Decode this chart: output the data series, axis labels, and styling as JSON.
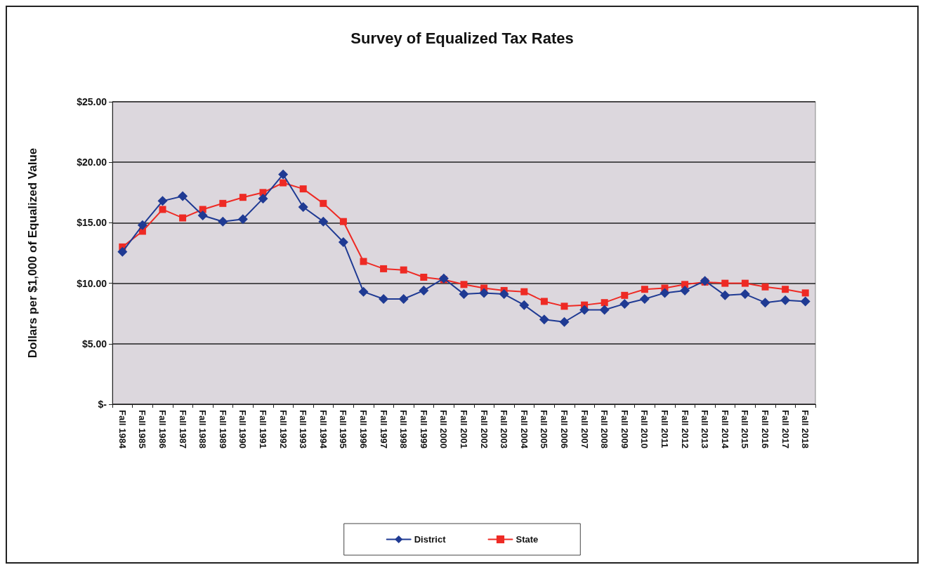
{
  "chart_data": {
    "type": "line",
    "title": "Survey of Equalized Tax Rates",
    "ylabel": "Dollars per $1,000 of Equalized Value",
    "categories": [
      "Fall 1984",
      "Fall 1985",
      "Fall 1986",
      "Fall 1987",
      "Fall 1988",
      "Fall 1989",
      "Fall 1990",
      "Fall 1991",
      "Fall 1992",
      "Fall 1993",
      "Fall 1994",
      "Fall 1995",
      "Fall 1996",
      "Fall 1997",
      "Fall 1998",
      "Fall 1999",
      "Fall 2000",
      "Fall 2001",
      "Fall 2002",
      "Fall 2003",
      "Fall 2004",
      "Fall 2005",
      "Fall 2006",
      "Fall 2007",
      "Fall 2008",
      "Fall 2009",
      "Fall 2010",
      "Fall 2011",
      "Fall 2012",
      "Fall 2013",
      "Fall 2014",
      "Fall 2015",
      "Fall 2016",
      "Fall 2017",
      "Fall 2018"
    ],
    "series": [
      {
        "name": "District",
        "color": "#1f3a93",
        "marker": "diamond",
        "values": [
          12.6,
          14.8,
          16.8,
          17.2,
          15.6,
          15.1,
          15.3,
          17.0,
          19.0,
          16.3,
          15.1,
          13.4,
          9.3,
          8.7,
          8.7,
          9.4,
          10.4,
          9.1,
          9.2,
          9.1,
          8.2,
          7.0,
          6.8,
          7.8,
          7.8,
          8.3,
          8.7,
          9.2,
          9.4,
          10.2,
          9.0,
          9.1,
          8.4,
          8.6,
          8.5
        ]
      },
      {
        "name": "State",
        "color": "#ee2a24",
        "marker": "square",
        "values": [
          13.0,
          14.3,
          16.1,
          15.4,
          16.1,
          16.6,
          17.1,
          17.5,
          18.3,
          17.8,
          16.6,
          15.1,
          11.8,
          11.2,
          11.1,
          10.5,
          10.3,
          9.9,
          9.6,
          9.4,
          9.3,
          8.5,
          8.1,
          8.2,
          8.4,
          9.0,
          9.5,
          9.6,
          9.9,
          10.1,
          10.0,
          10.0,
          9.7,
          9.5,
          9.2
        ]
      }
    ],
    "ylim": [
      0,
      25
    ],
    "yticks": [
      {
        "value": 0,
        "label": "$-"
      },
      {
        "value": 5,
        "label": "$5.00"
      },
      {
        "value": 10,
        "label": "$10.00"
      },
      {
        "value": 15,
        "label": "$15.00"
      },
      {
        "value": 20,
        "label": "$20.00"
      },
      {
        "value": 25,
        "label": "$25.00"
      }
    ],
    "grid": "y",
    "legend": "bottom",
    "line_style": "solid"
  }
}
